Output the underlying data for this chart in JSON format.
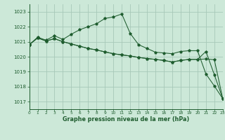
{
  "background_color": "#cce8d8",
  "grid_color": "#a8c8b8",
  "line_color": "#1e5c2e",
  "xlabel": "Graphe pression niveau de la mer (hPa)",
  "xlim": [
    0,
    23
  ],
  "ylim": [
    1016.5,
    1023.5
  ],
  "yticks": [
    1017,
    1018,
    1019,
    1020,
    1021,
    1022,
    1023
  ],
  "xticks": [
    0,
    1,
    2,
    3,
    4,
    5,
    6,
    7,
    8,
    9,
    10,
    11,
    12,
    13,
    14,
    15,
    16,
    17,
    18,
    19,
    20,
    21,
    22,
    23
  ],
  "s1": [
    1020.8,
    1021.3,
    1021.1,
    1021.4,
    1021.15,
    1021.5,
    1021.8,
    1022.0,
    1022.2,
    1022.55,
    1022.65,
    1022.85,
    1021.55,
    1020.8,
    1020.55,
    1020.3,
    1020.25,
    1020.2,
    1020.35,
    1020.4,
    1020.4,
    1018.85,
    1018.05,
    1017.2
  ],
  "s2": [
    1020.8,
    1021.25,
    1021.05,
    1021.2,
    1021.0,
    1020.85,
    1020.7,
    1020.55,
    1020.45,
    1020.32,
    1020.2,
    1020.12,
    1020.05,
    1019.95,
    1019.88,
    1019.82,
    1019.75,
    1019.65,
    1019.75,
    1019.82,
    1019.82,
    1019.85,
    1019.8,
    1017.2
  ],
  "s3": [
    1020.8,
    1021.25,
    1021.05,
    1021.2,
    1021.0,
    1020.85,
    1020.7,
    1020.55,
    1020.45,
    1020.32,
    1020.2,
    1020.12,
    1020.05,
    1019.95,
    1019.88,
    1019.82,
    1019.75,
    1019.65,
    1019.75,
    1019.82,
    1019.82,
    1020.35,
    1018.8,
    1017.2
  ]
}
